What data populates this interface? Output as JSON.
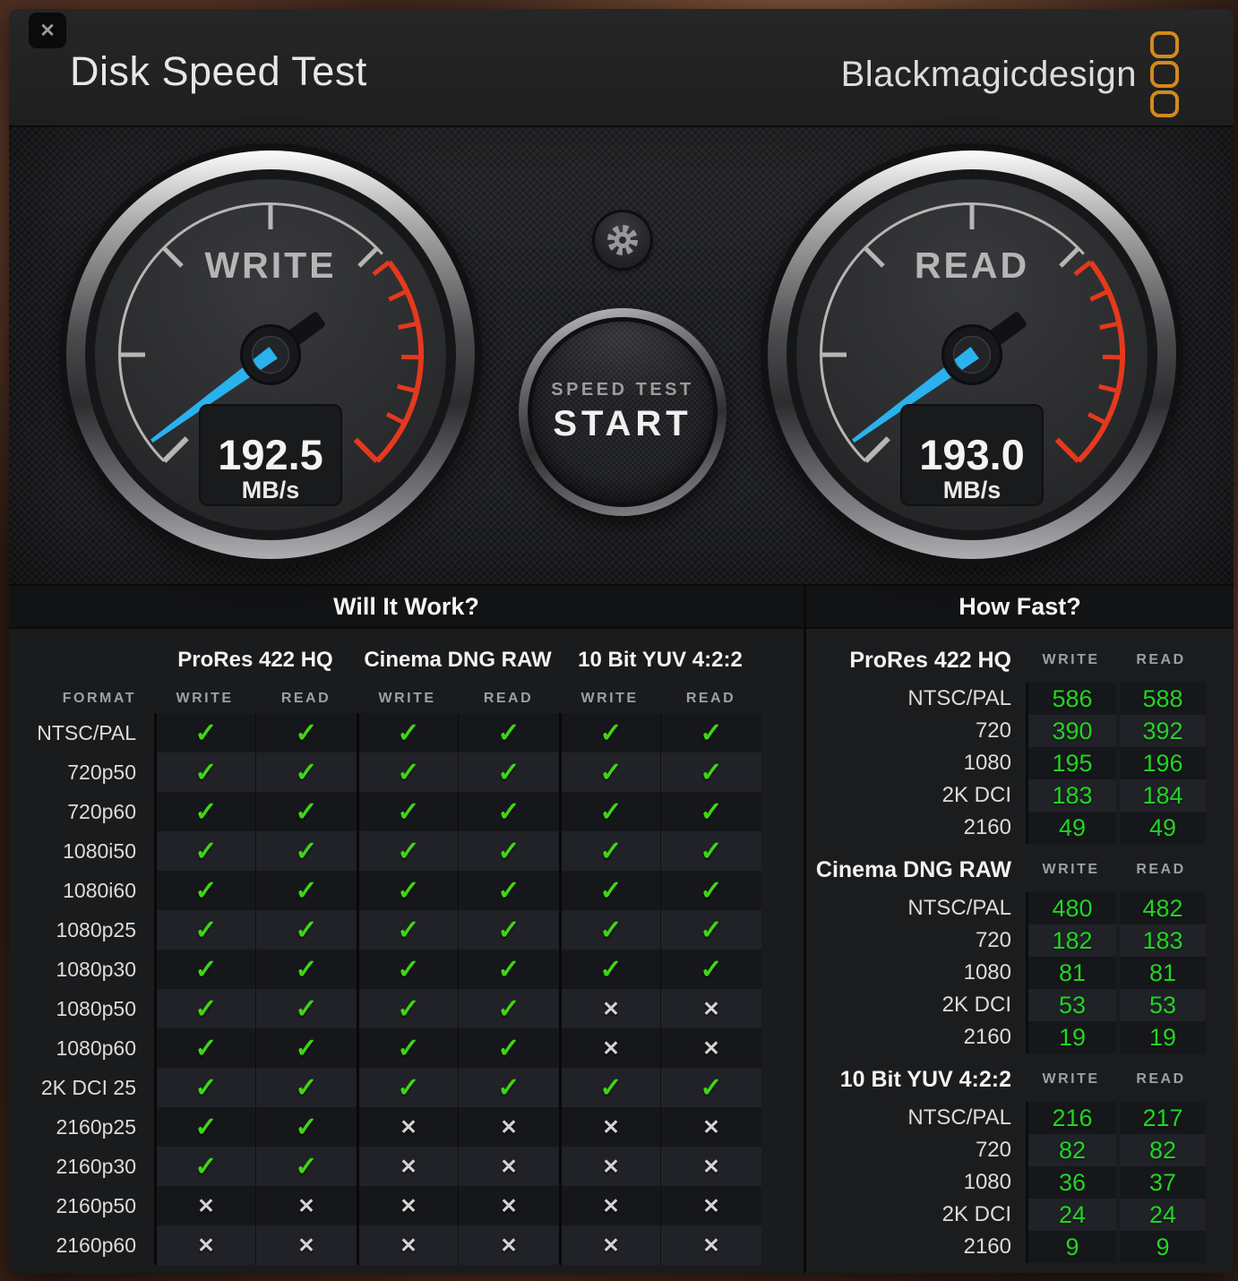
{
  "window": {
    "title": "Disk Speed Test",
    "close_glyph": "✕"
  },
  "logo": {
    "text": "Blackmagicdesign"
  },
  "gauges": {
    "write": {
      "label": "WRITE",
      "value": "192.5",
      "unit": "MB/s"
    },
    "read": {
      "label": "READ",
      "value": "193.0",
      "unit": "MB/s"
    }
  },
  "start_button": {
    "line1": "SPEED TEST",
    "line2": "START"
  },
  "will_it_work": {
    "title": "Will It Work?",
    "format_header": "FORMAT",
    "groups": [
      "ProRes 422 HQ",
      "Cinema DNG RAW",
      "10 Bit YUV 4:2:2"
    ],
    "col_headers": [
      "WRITE",
      "READ",
      "WRITE",
      "READ",
      "WRITE",
      "READ"
    ],
    "check_glyph": "✓",
    "cross_glyph": "✕",
    "rows": [
      {
        "format": "NTSC/PAL",
        "checks": [
          1,
          1,
          1,
          1,
          1,
          1
        ]
      },
      {
        "format": "720p50",
        "checks": [
          1,
          1,
          1,
          1,
          1,
          1
        ]
      },
      {
        "format": "720p60",
        "checks": [
          1,
          1,
          1,
          1,
          1,
          1
        ]
      },
      {
        "format": "1080i50",
        "checks": [
          1,
          1,
          1,
          1,
          1,
          1
        ]
      },
      {
        "format": "1080i60",
        "checks": [
          1,
          1,
          1,
          1,
          1,
          1
        ]
      },
      {
        "format": "1080p25",
        "checks": [
          1,
          1,
          1,
          1,
          1,
          1
        ]
      },
      {
        "format": "1080p30",
        "checks": [
          1,
          1,
          1,
          1,
          1,
          1
        ]
      },
      {
        "format": "1080p50",
        "checks": [
          1,
          1,
          1,
          1,
          0,
          0
        ]
      },
      {
        "format": "1080p60",
        "checks": [
          1,
          1,
          1,
          1,
          0,
          0
        ]
      },
      {
        "format": "2K DCI 25",
        "checks": [
          1,
          1,
          1,
          1,
          1,
          1
        ]
      },
      {
        "format": "2160p25",
        "checks": [
          1,
          1,
          0,
          0,
          0,
          0
        ]
      },
      {
        "format": "2160p30",
        "checks": [
          1,
          1,
          0,
          0,
          0,
          0
        ]
      },
      {
        "format": "2160p50",
        "checks": [
          0,
          0,
          0,
          0,
          0,
          0
        ]
      },
      {
        "format": "2160p60",
        "checks": [
          0,
          0,
          0,
          0,
          0,
          0
        ]
      }
    ]
  },
  "how_fast": {
    "title": "How Fast?",
    "groups": [
      {
        "name": "ProRes 422 HQ",
        "write_header": "WRITE",
        "read_header": "READ",
        "rows": [
          {
            "format": "NTSC/PAL",
            "write": "586",
            "read": "588"
          },
          {
            "format": "720",
            "write": "390",
            "read": "392"
          },
          {
            "format": "1080",
            "write": "195",
            "read": "196"
          },
          {
            "format": "2K DCI",
            "write": "183",
            "read": "184"
          },
          {
            "format": "2160",
            "write": "49",
            "read": "49"
          }
        ]
      },
      {
        "name": "Cinema DNG RAW",
        "write_header": "WRITE",
        "read_header": "READ",
        "rows": [
          {
            "format": "NTSC/PAL",
            "write": "480",
            "read": "482"
          },
          {
            "format": "720",
            "write": "182",
            "read": "183"
          },
          {
            "format": "1080",
            "write": "81",
            "read": "81"
          },
          {
            "format": "2K DCI",
            "write": "53",
            "read": "53"
          },
          {
            "format": "2160",
            "write": "19",
            "read": "19"
          }
        ]
      },
      {
        "name": "10 Bit YUV 4:2:2",
        "write_header": "WRITE",
        "read_header": "READ",
        "rows": [
          {
            "format": "NTSC/PAL",
            "write": "216",
            "read": "217"
          },
          {
            "format": "720",
            "write": "82",
            "read": "82"
          },
          {
            "format": "1080",
            "write": "36",
            "read": "37"
          },
          {
            "format": "2K DCI",
            "write": "24",
            "read": "24"
          },
          {
            "format": "2160",
            "write": "9",
            "read": "9"
          }
        ]
      }
    ]
  },
  "colors": {
    "accent_green": "#3ed614",
    "value_green": "#22d422",
    "warning_red": "#e5391d",
    "needle_blue": "#29b2ee",
    "logo_orange": "#d28a1c"
  }
}
